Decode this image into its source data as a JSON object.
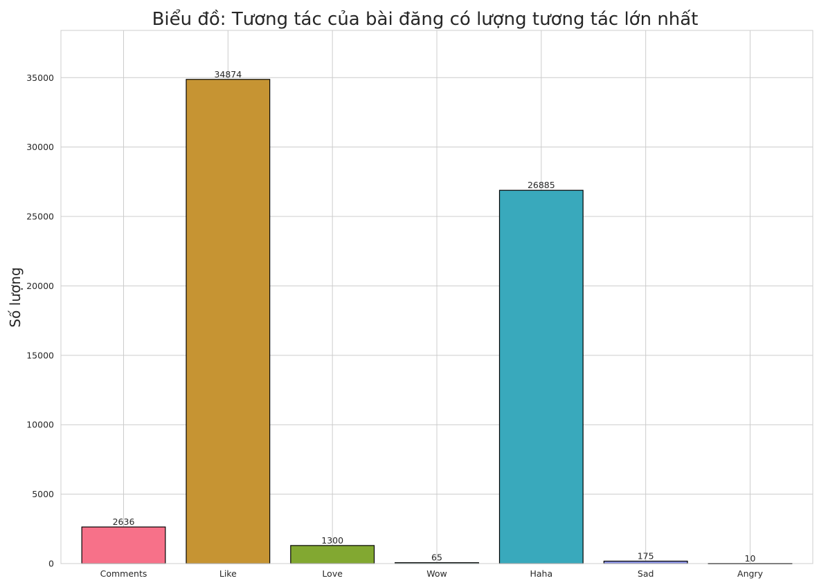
{
  "chart_data": {
    "type": "bar",
    "title": "Biểu đồ: Tương tác của bài đăng có lượng tương tác lớn nhất",
    "xlabel": "",
    "ylabel": "Số lượng",
    "categories": [
      "Comments",
      "Like",
      "Love",
      "Wow",
      "Haha",
      "Sad",
      "Angry"
    ],
    "values": [
      2636,
      34874,
      1300,
      65,
      26885,
      175,
      10
    ],
    "value_labels": [
      "2636",
      "34874",
      "1300",
      "65",
      "26885",
      "175",
      "10"
    ],
    "colors": [
      "#f77189",
      "#c69433",
      "#82a831",
      "#34ae91",
      "#39a9bc",
      "#8c94e4",
      "#e67ae4"
    ],
    "bar_edge_color": "#000000",
    "ylim": [
      0,
      38400
    ],
    "yticks": [
      0,
      5000,
      10000,
      15000,
      20000,
      25000,
      30000,
      35000
    ],
    "ytick_labels": [
      "0",
      "5000",
      "10000",
      "15000",
      "20000",
      "25000",
      "30000",
      "35000"
    ],
    "grid": true,
    "legend": "none"
  }
}
